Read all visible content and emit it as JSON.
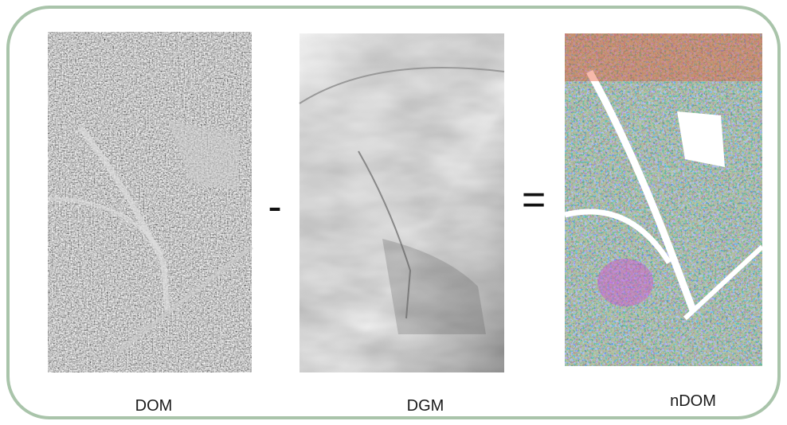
{
  "panels": [
    {
      "label": "DOM"
    },
    {
      "label": "DGM"
    },
    {
      "label": "nDOM"
    }
  ],
  "operators": [
    "-",
    "="
  ]
}
